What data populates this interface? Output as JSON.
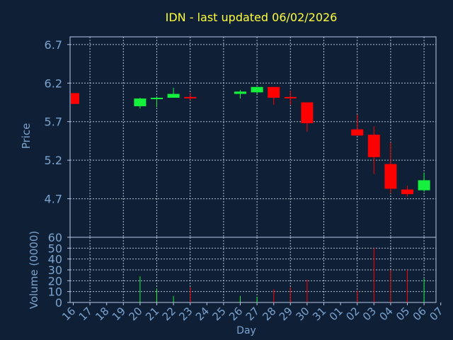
{
  "colors": {
    "background": "#0f2036",
    "frame": "#b4c8e6",
    "grid": "#d2dcec",
    "title": "#ffff3c",
    "axis_text": "#7aa3d0",
    "up": "#14f03c",
    "down": "#ff0000"
  },
  "chart_data": {
    "type": "candlestick",
    "title": "IDN - last updated 06/02/2026",
    "xlabel": "Day",
    "price_panel": {
      "ylabel": "Price",
      "ylim": [
        4.2,
        6.8
      ],
      "yticks": [
        "6.7",
        "6.2",
        "5.7",
        "5.2",
        "4.7"
      ],
      "ytick_values": [
        6.7,
        6.2,
        5.7,
        5.2,
        4.7
      ]
    },
    "volume_panel": {
      "ylabel": "Volume (0000)",
      "ylim": [
        0,
        60
      ],
      "yticks": [
        "60",
        "50",
        "40",
        "30",
        "20",
        "10",
        "0"
      ],
      "ytick_values": [
        60,
        50,
        40,
        30,
        20,
        10,
        0
      ]
    },
    "x_ticks": [
      "16",
      "17",
      "18",
      "19",
      "20",
      "21",
      "22",
      "23",
      "24",
      "25",
      "26",
      "27",
      "28",
      "29",
      "30",
      "31",
      "01",
      "02",
      "03",
      "04",
      "05",
      "06",
      "07"
    ],
    "grid": true,
    "candles": [
      {
        "day": "16",
        "open": 6.07,
        "high": 6.07,
        "low": 5.93,
        "close": 5.93,
        "volume": 0
      },
      {
        "day": "20",
        "open": 5.9,
        "high": 6.01,
        "low": 5.87,
        "close": 6.0,
        "volume": 24
      },
      {
        "day": "21",
        "open": 6.0,
        "high": 6.02,
        "low": 5.89,
        "close": 6.01,
        "volume": 13
      },
      {
        "day": "22",
        "open": 6.01,
        "high": 6.14,
        "low": 6.01,
        "close": 6.06,
        "volume": 6
      },
      {
        "day": "23",
        "open": 6.02,
        "high": 6.07,
        "low": 5.98,
        "close": 6.01,
        "volume": 14
      },
      {
        "day": "26",
        "open": 6.06,
        "high": 6.11,
        "low": 6.0,
        "close": 6.09,
        "volume": 6
      },
      {
        "day": "27",
        "open": 6.08,
        "high": 6.15,
        "low": 6.06,
        "close": 6.15,
        "volume": 5
      },
      {
        "day": "28",
        "open": 6.15,
        "high": 6.15,
        "low": 5.92,
        "close": 6.01,
        "volume": 12
      },
      {
        "day": "29",
        "open": 6.02,
        "high": 6.1,
        "low": 5.92,
        "close": 6.01,
        "volume": 14
      },
      {
        "day": "30",
        "open": 5.95,
        "high": 5.95,
        "low": 5.57,
        "close": 5.68,
        "volume": 21
      },
      {
        "day": "02",
        "open": 5.6,
        "high": 5.79,
        "low": 5.52,
        "close": 5.52,
        "volume": 11
      },
      {
        "day": "03",
        "open": 5.53,
        "high": 5.64,
        "low": 5.02,
        "close": 5.24,
        "volume": 50
      },
      {
        "day": "04",
        "open": 5.15,
        "high": 5.43,
        "low": 4.77,
        "close": 4.83,
        "volume": 30
      },
      {
        "day": "05",
        "open": 4.82,
        "high": 4.87,
        "low": 4.73,
        "close": 4.76,
        "volume": 30
      },
      {
        "day": "06",
        "open": 4.81,
        "high": 5.04,
        "low": 4.79,
        "close": 4.94,
        "volume": 22
      }
    ]
  }
}
